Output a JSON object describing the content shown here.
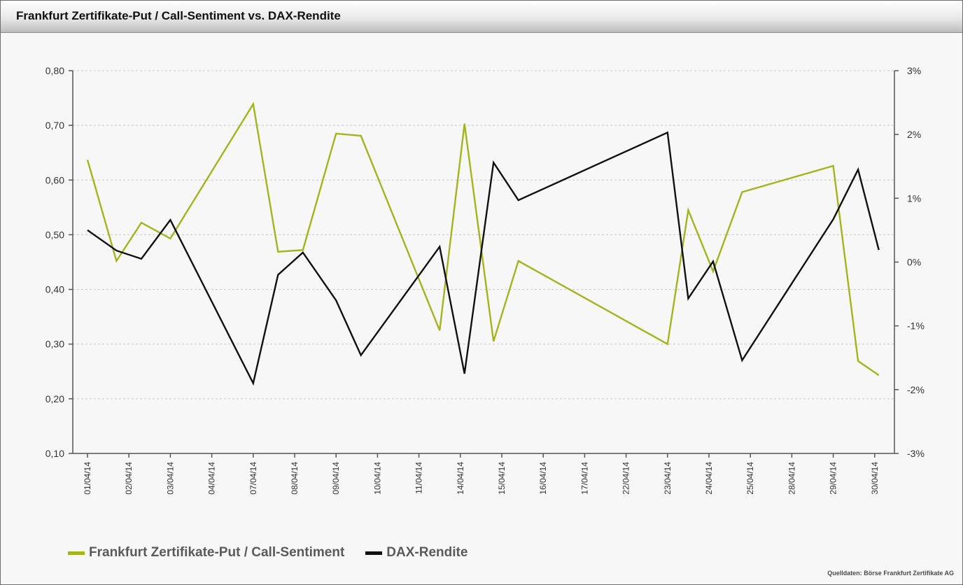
{
  "header": {
    "title": "Frankfurt Zertifikate-Put / Call-Sentiment vs. DAX-Rendite"
  },
  "chart_data": {
    "type": "line",
    "x": [
      "01/04/14",
      "02/04/14",
      "03/04/14",
      "04/04/14",
      "07/04/14",
      "08/04/14",
      "09/04/14",
      "10/04/14",
      "11/04/14",
      "14/04/14",
      "15/04/14",
      "16/04/14",
      "17/04/14",
      "22/04/14",
      "23/04/14",
      "24/04/14",
      "25/04/14",
      "28/04/14",
      "29/04/14",
      "30/04/14"
    ],
    "x_tick_labels": [
      "01/04/14",
      "02/04/14",
      "03/04/14",
      "04/04/14",
      "07/04/14",
      "08/04/14",
      "09/04/14",
      "10/04/14",
      "11/04/14",
      "14/04/14",
      "15/04/14",
      "16/04/14",
      "17/04/14",
      "22/04/14",
      "23/04/14",
      "24/04/14",
      "25/04/14",
      "28/04/14",
      "29/04/14",
      "30/04/14"
    ],
    "series": [
      {
        "name": "Frankfurt Zertifikate-Put / Call-Sentiment",
        "axis": "left",
        "color": "#a2b51d",
        "points": [
          {
            "x": 0.0,
            "y": 0.637
          },
          {
            "x": 0.7,
            "y": 0.452
          },
          {
            "x": 1.3,
            "y": 0.522
          },
          {
            "x": 2.0,
            "y": 0.493
          },
          {
            "x": 4.0,
            "y": 0.739
          },
          {
            "x": 4.6,
            "y": 0.469
          },
          {
            "x": 5.2,
            "y": 0.472
          },
          {
            "x": 6.0,
            "y": 0.685
          },
          {
            "x": 6.6,
            "y": 0.681
          },
          {
            "x": 8.5,
            "y": 0.325
          },
          {
            "x": 9.1,
            "y": 0.703
          },
          {
            "x": 9.8,
            "y": 0.305
          },
          {
            "x": 10.4,
            "y": 0.452
          },
          {
            "x": 14.0,
            "y": 0.3
          },
          {
            "x": 14.5,
            "y": 0.545
          },
          {
            "x": 15.1,
            "y": 0.433
          },
          {
            "x": 15.8,
            "y": 0.578
          },
          {
            "x": 18.0,
            "y": 0.626
          },
          {
            "x": 18.6,
            "y": 0.269
          },
          {
            "x": 19.1,
            "y": 0.243
          }
        ]
      },
      {
        "name": "DAX-Rendite",
        "axis": "right",
        "color": "#111111",
        "points": [
          {
            "x": 0.0,
            "y": 0.5
          },
          {
            "x": 0.7,
            "y": 0.18
          },
          {
            "x": 1.3,
            "y": 0.05
          },
          {
            "x": 2.0,
            "y": 0.66
          },
          {
            "x": 4.0,
            "y": -1.9
          },
          {
            "x": 4.6,
            "y": -0.2
          },
          {
            "x": 5.2,
            "y": 0.15
          },
          {
            "x": 6.0,
            "y": -0.6
          },
          {
            "x": 6.6,
            "y": -1.46
          },
          {
            "x": 8.5,
            "y": 0.24
          },
          {
            "x": 9.1,
            "y": -1.75
          },
          {
            "x": 9.8,
            "y": 1.56
          },
          {
            "x": 10.4,
            "y": 0.97
          },
          {
            "x": 14.0,
            "y": 2.03
          },
          {
            "x": 14.5,
            "y": -0.57
          },
          {
            "x": 15.1,
            "y": 0.01
          },
          {
            "x": 15.8,
            "y": -1.54
          },
          {
            "x": 18.0,
            "y": 0.67
          },
          {
            "x": 18.6,
            "y": 1.45
          },
          {
            "x": 19.1,
            "y": 0.19
          }
        ]
      }
    ],
    "y_left": {
      "min": 0.1,
      "max": 0.8,
      "ticks": [
        "0,10",
        "0,20",
        "0,30",
        "0,40",
        "0,50",
        "0,60",
        "0,70",
        "0,80"
      ]
    },
    "y_right": {
      "min": -3,
      "max": 3,
      "ticks": [
        "-3%",
        "-2%",
        "-1%",
        "0%",
        "1%",
        "2%",
        "3%"
      ]
    },
    "grid": "horizontal-dashed",
    "legend_position": "bottom-left"
  },
  "legend": {
    "items": [
      {
        "label": "Frankfurt Zertifikate-Put / Call-Sentiment",
        "color": "#a2b51d"
      },
      {
        "label": "DAX-Rendite",
        "color": "#111111"
      }
    ]
  },
  "footer": {
    "source": "Quelldaten: Börse Frankfurt Zertifikate AG"
  }
}
